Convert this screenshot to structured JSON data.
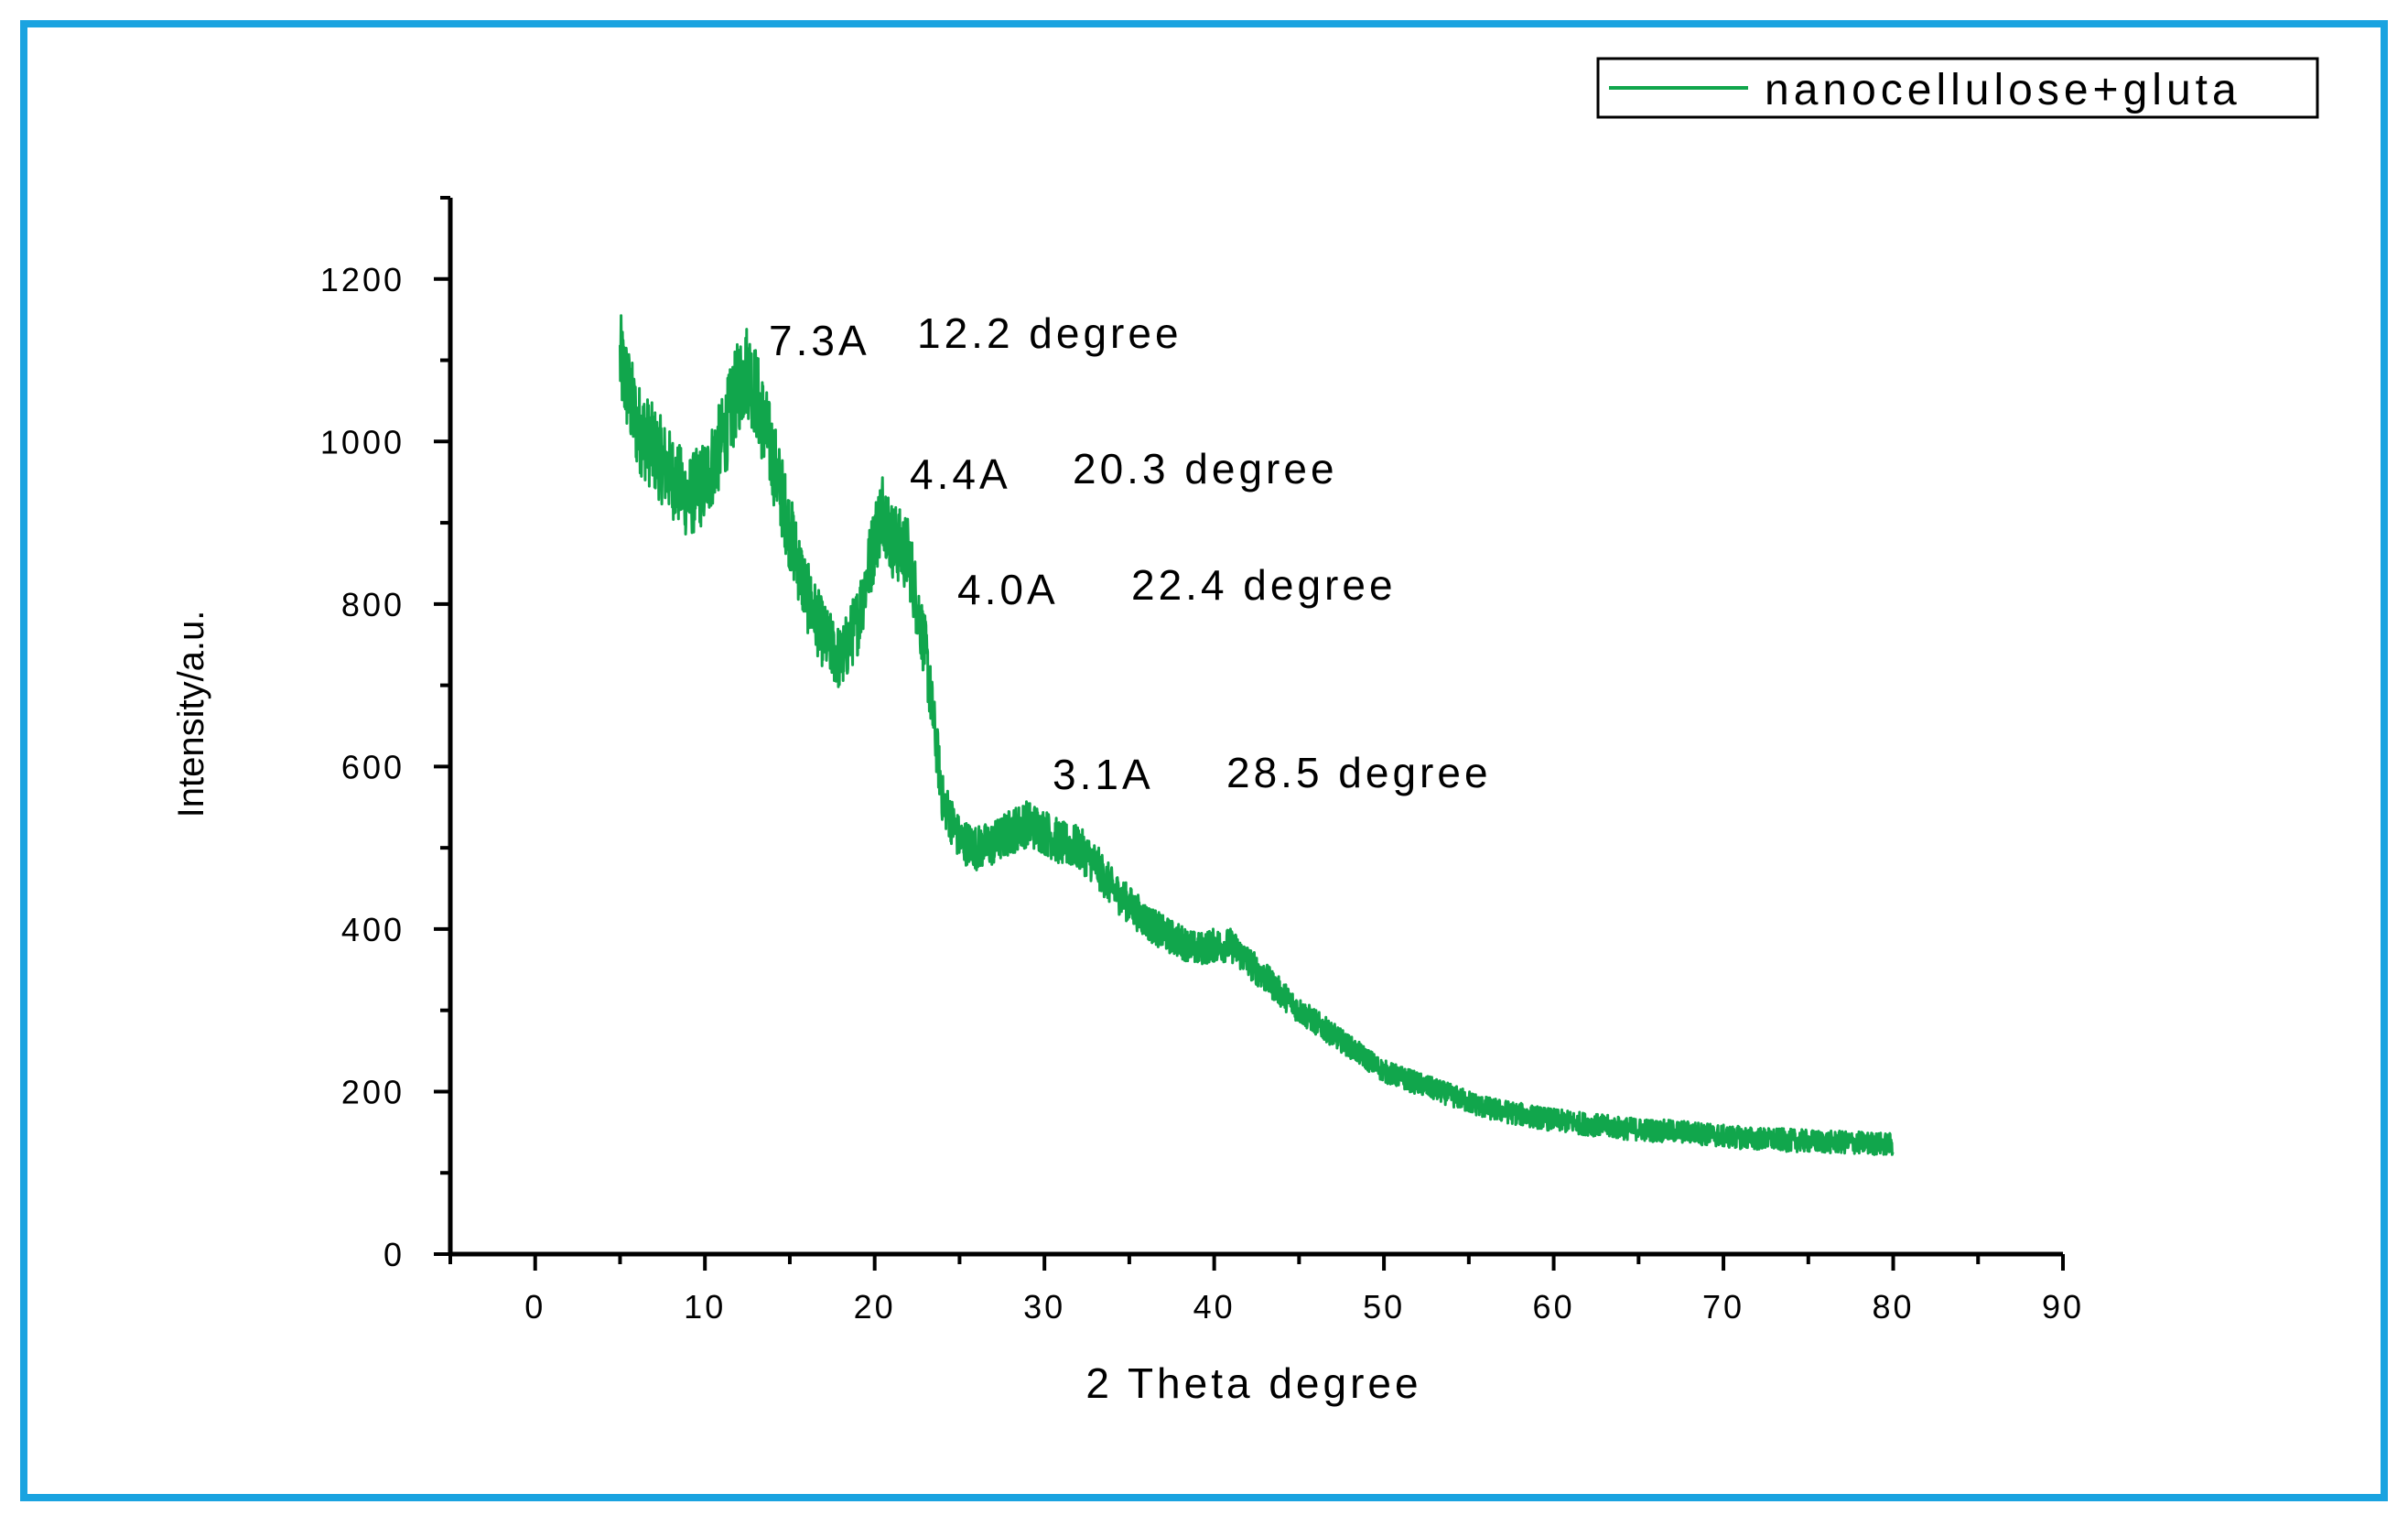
{
  "colors": {
    "frame_border": "#1aa3e0",
    "series_line": "#11a64c",
    "axis": "#000000",
    "background": "#ffffff"
  },
  "chart_data": {
    "type": "line",
    "title": "",
    "xlabel": "2 Theta degree",
    "ylabel": "Intensity/a.u.",
    "xlim": [
      -5,
      90
    ],
    "ylim": [
      0,
      1300
    ],
    "x_ticks": [
      0,
      10,
      20,
      30,
      40,
      50,
      60,
      70,
      80,
      90
    ],
    "y_ticks": [
      0,
      200,
      400,
      600,
      800,
      1000,
      1200
    ],
    "x_tick_labels": [
      "0",
      "10",
      "20",
      "30",
      "40",
      "50",
      "60",
      "70",
      "80",
      "90"
    ],
    "y_tick_labels": [
      "0",
      "200",
      "400",
      "600",
      "800",
      "1000",
      "1200"
    ],
    "grid": false,
    "legend": {
      "position": "top-right",
      "entries": [
        "nanocellulose+gluta"
      ]
    },
    "series": [
      {
        "name": "nanocellulose+gluta",
        "x": [
          5,
          6,
          7,
          8,
          9,
          10,
          11,
          12,
          12.5,
          13,
          14,
          15,
          16,
          17,
          18,
          19,
          20,
          20.5,
          21,
          22,
          23,
          24,
          25,
          26,
          27,
          28,
          29,
          30,
          31,
          32,
          33,
          34,
          35,
          36,
          37,
          38,
          39,
          40,
          41,
          42,
          43,
          44,
          45,
          46,
          47,
          48,
          49,
          50,
          52,
          54,
          56,
          58,
          60,
          62,
          64,
          66,
          68,
          70,
          72,
          74,
          76,
          78,
          80
        ],
        "y": [
          1100,
          1020,
          990,
          960,
          930,
          950,
          1000,
          1070,
          1090,
          1060,
          980,
          890,
          810,
          760,
          730,
          780,
          880,
          920,
          880,
          860,
          740,
          560,
          510,
          500,
          505,
          520,
          530,
          520,
          505,
          500,
          480,
          450,
          430,
          410,
          395,
          385,
          375,
          380,
          380,
          360,
          340,
          320,
          300,
          285,
          270,
          255,
          240,
          225,
          210,
          195,
          180,
          172,
          165,
          160,
          155,
          152,
          150,
          145,
          142,
          140,
          138,
          137,
          135
        ]
      }
    ],
    "annotations": [
      {
        "d": "7.3A",
        "angle": "12.2 degree"
      },
      {
        "d": "4.4A",
        "angle": "20.3 degree"
      },
      {
        "d": "4.0A",
        "angle": "22.4 degree"
      },
      {
        "d": "3.1A",
        "angle": "28.5 degree"
      }
    ]
  }
}
